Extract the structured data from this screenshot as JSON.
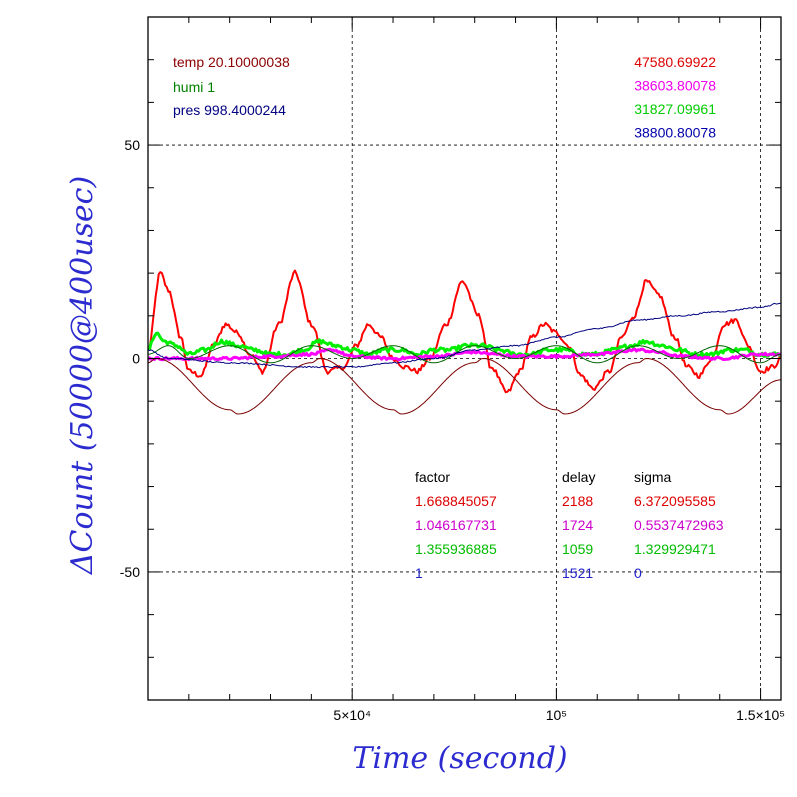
{
  "chart_data": {
    "type": "line",
    "xlabel": "Time (second)",
    "ylabel": "ΔCount (50000@400usec)",
    "xlim": [
      0,
      155000
    ],
    "ylim": [
      -80,
      80
    ],
    "x_ticks": [
      {
        "value": 50000,
        "label": "5×10⁴"
      },
      {
        "value": 100000,
        "label": "10⁵"
      },
      {
        "value": 150000,
        "label": "1.5×10⁵"
      }
    ],
    "y_ticks": [
      {
        "value": 50,
        "label": "50"
      },
      {
        "value": 0,
        "label": "0"
      },
      {
        "value": -50,
        "label": "-50"
      }
    ],
    "grid": true,
    "environment": {
      "temp": "temp 20.10000038",
      "humi": "humi 1",
      "pres": "pres 998.4000244"
    },
    "environment_colors": {
      "temp": "#8b0000",
      "humi": "#008000",
      "pres": "#000080"
    },
    "base_counts": [
      {
        "value": "47580.69922",
        "color": "#dd0000"
      },
      {
        "value": "38603.80078",
        "color": "#ee00ee"
      },
      {
        "value": "31827.09961",
        "color": "#00cc00"
      },
      {
        "value": "38800.80078",
        "color": "#0000aa"
      }
    ],
    "fit_table": {
      "headers": {
        "factor": "factor",
        "delay": "delay",
        "sigma": "sigma"
      },
      "rows": [
        {
          "factor": "1.668845057",
          "delay": "2188",
          "sigma": "6.372095585",
          "color": "#dd0000"
        },
        {
          "factor": "1.046167731",
          "delay": "1724",
          "sigma": "0.5537472963",
          "color": "#cc00cc"
        },
        {
          "factor": "1.355936885",
          "delay": "1059",
          "sigma": "1.329929471",
          "color": "#00bb00"
        },
        {
          "factor": "1",
          "delay": "1521",
          "sigma": "0",
          "color": "#2222cc"
        }
      ]
    },
    "series": [
      {
        "color": "#ff0000",
        "width": 2,
        "noise": 0.6,
        "x": [
          0,
          3000,
          5000,
          8000,
          10000,
          13000,
          16000,
          19000,
          22000,
          25000,
          28000,
          32000,
          36000,
          40000,
          44000,
          48000,
          51000,
          54000,
          57000,
          60000,
          63000,
          66000,
          69000,
          73000,
          77000,
          81000,
          84000,
          88000,
          91000,
          94000,
          97000,
          100000,
          103000,
          106000,
          109000,
          113000,
          116000,
          119000,
          122000,
          125000,
          129000,
          132000,
          135000,
          138000,
          141000,
          144000,
          147000,
          150000,
          153000,
          155000
        ],
        "y": [
          2,
          20,
          16,
          5,
          -3,
          -4,
          3,
          8,
          6,
          1,
          -3,
          8,
          20,
          8,
          -3,
          -2,
          3,
          8,
          5,
          0,
          -2,
          -3,
          0,
          8,
          18,
          10,
          -2,
          -8,
          -3,
          5,
          8,
          6,
          3,
          -4,
          -7,
          -3,
          5,
          10,
          18,
          15,
          5,
          -2,
          -4,
          0,
          8,
          9,
          3,
          -3,
          -2,
          0
        ]
      },
      {
        "color": "#00ee00",
        "width": 3,
        "noise": 0.5,
        "x": [
          0,
          2000,
          4000,
          7000,
          10000,
          14000,
          18000,
          22000,
          26000,
          30000,
          34000,
          38000,
          42000,
          46000,
          50000,
          54000,
          58000,
          62000,
          66000,
          70000,
          74000,
          78000,
          82000,
          86000,
          90000,
          94000,
          98000,
          102000,
          106000,
          110000,
          114000,
          118000,
          122000,
          126000,
          130000,
          134000,
          138000,
          142000,
          146000,
          150000,
          155000
        ],
        "y": [
          2,
          6,
          4,
          3,
          1,
          2,
          4,
          3,
          2,
          1,
          1,
          2,
          4,
          3,
          2,
          1,
          2,
          2,
          1,
          2,
          2,
          3,
          3,
          2,
          1,
          1,
          2,
          2,
          1,
          1,
          2,
          3,
          4,
          3,
          2,
          1,
          1,
          2,
          2,
          1,
          1
        ]
      },
      {
        "color": "#ff00ff",
        "width": 3,
        "noise": 0.3,
        "x": [
          0,
          10000,
          20000,
          30000,
          40000,
          45000,
          50000,
          60000,
          70000,
          80000,
          85000,
          90000,
          100000,
          110000,
          120000,
          125000,
          130000,
          140000,
          150000,
          155000
        ],
        "y": [
          0,
          0,
          0,
          0.5,
          1,
          2,
          0.5,
          0,
          0.5,
          1.5,
          1,
          0.5,
          0.5,
          1,
          2,
          1.5,
          0.5,
          0,
          1,
          1
        ]
      },
      {
        "color": "#7a0000",
        "width": 1,
        "noise": 0,
        "x": [
          0,
          2000,
          20000,
          22000,
          40000,
          42000,
          60000,
          62000,
          80000,
          82000,
          100000,
          102000,
          120000,
          122000,
          140000,
          142000,
          155000
        ],
        "y": [
          -1,
          0,
          -12,
          -13,
          -1,
          0,
          -12,
          -13,
          -1,
          0,
          -12,
          -13,
          -1,
          0,
          -12,
          -13,
          -5
        ]
      },
      {
        "color": "#006400",
        "width": 1,
        "noise": 0,
        "x": [
          0,
          5000,
          10000,
          20000,
          30000,
          40000,
          50000,
          60000,
          70000,
          80000,
          90000,
          100000,
          110000,
          120000,
          130000,
          140000,
          150000,
          155000
        ],
        "y": [
          1,
          3,
          0,
          3,
          -1,
          3,
          0,
          3,
          -1,
          3,
          0,
          3,
          -1,
          3,
          0,
          3,
          -1,
          1
        ]
      },
      {
        "color": "#000080",
        "width": 1,
        "noise": 0.15,
        "x": [
          0,
          5000,
          20000,
          40000,
          50000,
          60000,
          70000,
          80000,
          90000,
          100000,
          110000,
          120000,
          130000,
          140000,
          150000,
          155000
        ],
        "y": [
          2,
          0,
          -1,
          -2,
          -2,
          -1,
          0,
          2,
          3,
          5,
          7,
          9,
          10,
          11,
          12,
          13
        ]
      }
    ]
  }
}
